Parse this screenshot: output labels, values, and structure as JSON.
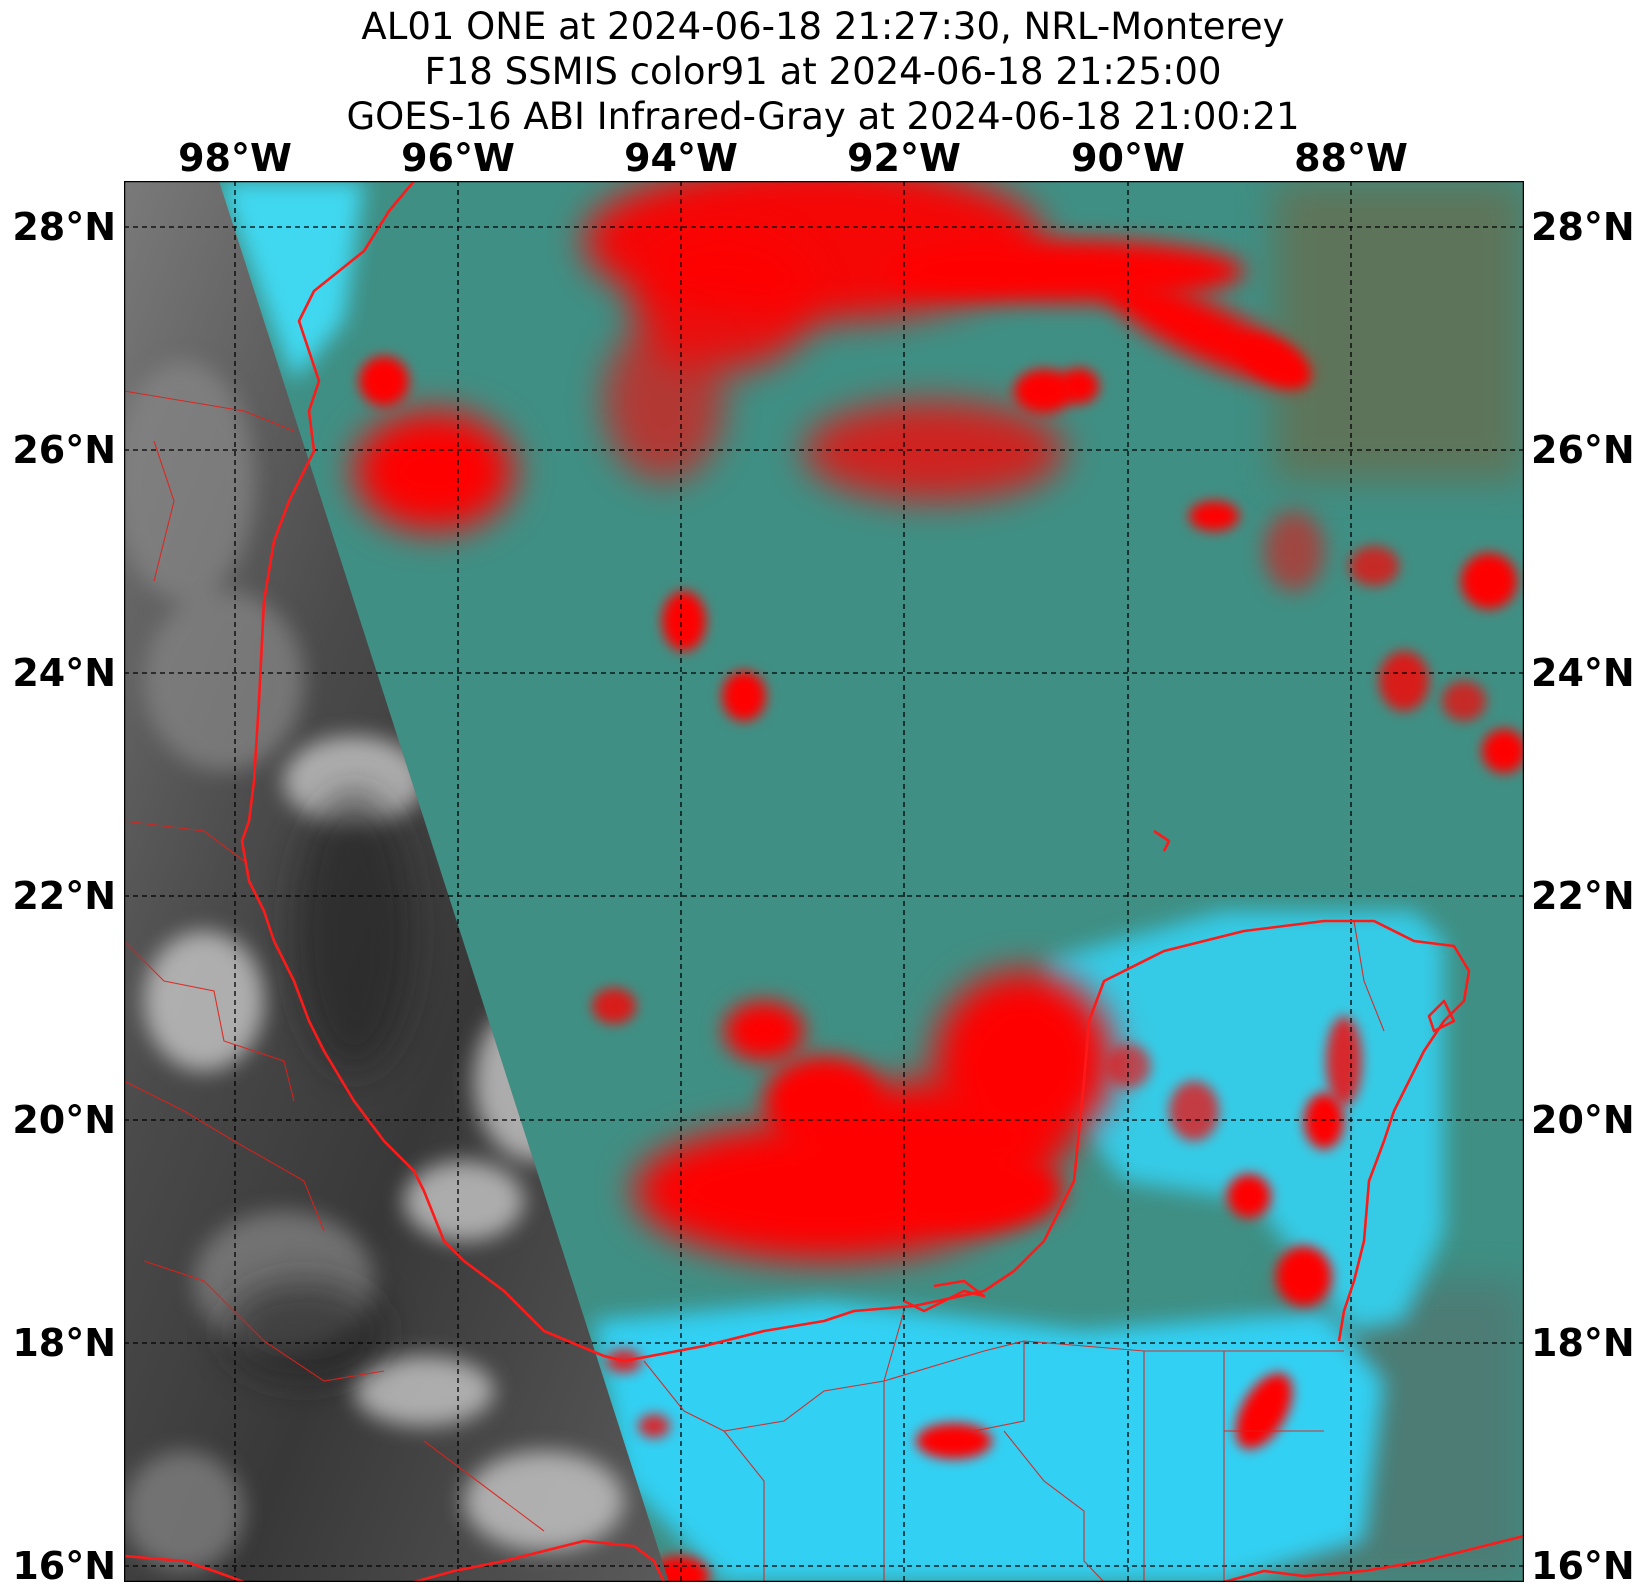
{
  "title": {
    "line1": "AL01 ONE at 2024-06-18 21:27:30, NRL-Monterey",
    "line2": "F18 SSMIS color91 at 2024-06-18 21:25:00",
    "line3": "GOES-16 ABI Infrared-Gray at 2024-06-18 21:00:21"
  },
  "longitude_labels": [
    "98°W",
    "96°W",
    "94°W",
    "92°W",
    "90°W",
    "88°W"
  ],
  "latitude_labels": [
    "28°N",
    "26°N",
    "24°N",
    "22°N",
    "20°N",
    "18°N",
    "16°N"
  ],
  "colors": {
    "coastline": "#ff1a1a",
    "precip_core": "#ff0000",
    "land_background": "#33d1f2",
    "ocean_background": "#3f8f84",
    "ir_panel": "#3a3a3a"
  }
}
